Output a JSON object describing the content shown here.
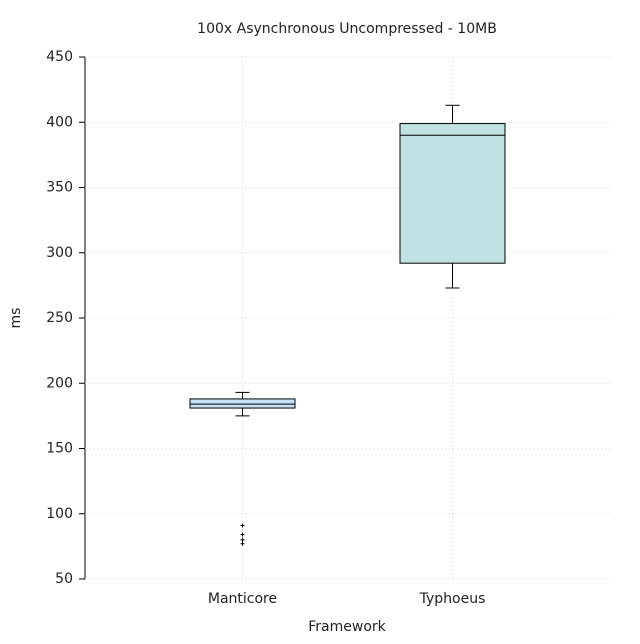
{
  "chart_data": {
    "type": "box",
    "title": "100x Asynchronous Uncompressed - 10MB",
    "x_label": "Framework",
    "y_label": "ms",
    "categories": [
      "Manticore",
      "Typhoeus"
    ],
    "min": [
      175,
      273
    ],
    "q1": [
      181,
      292
    ],
    "median": [
      184,
      390
    ],
    "q3": [
      188,
      399
    ],
    "max": [
      193,
      413
    ],
    "outliers": [
      [
        91,
        84,
        80,
        77
      ],
      []
    ],
    "colors": [
      "#c6dff5",
      "#c0e2e2"
    ],
    "ylim": [
      50,
      450
    ],
    "yticks": [
      50,
      100,
      150,
      200,
      250,
      300,
      350,
      400,
      450
    ],
    "grid": true
  }
}
